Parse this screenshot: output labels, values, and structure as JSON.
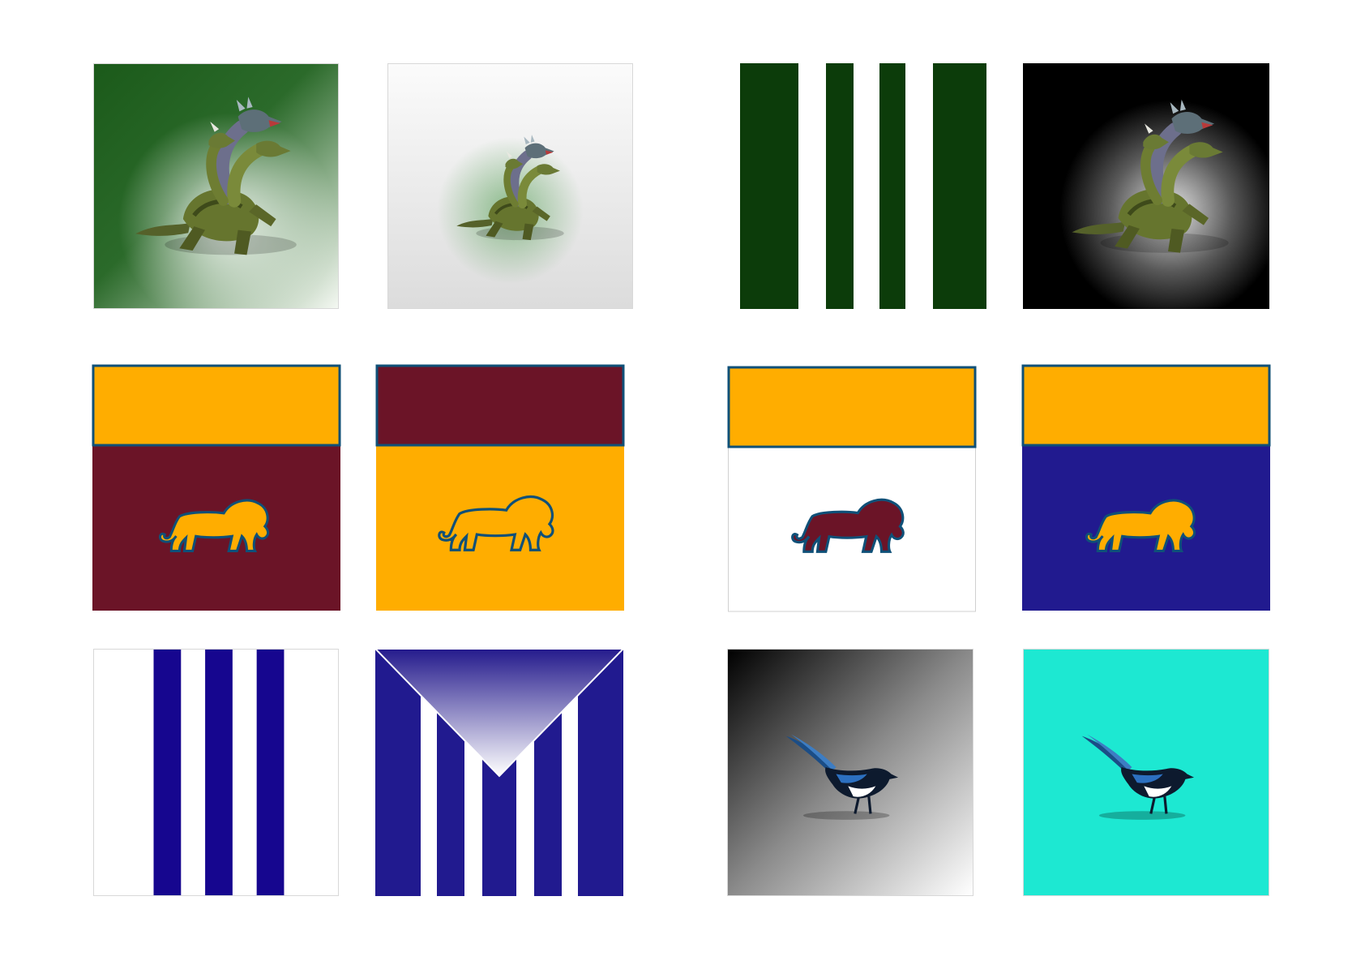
{
  "palette": {
    "hydra_green": "#1b5a1a",
    "stripe_green": "#0c3c0a",
    "maroon": "#6b1427",
    "gold": "#ffad00",
    "navy_outline": "#0f5078",
    "royal_blue": "#211a8f",
    "stripe_blue": "#16068f",
    "black": "#000000",
    "turquoise": "#1de8d2",
    "white": "#ffffff"
  },
  "rows": [
    {
      "name": "hydra-row",
      "tiles": [
        {
          "name": "hydra-green-tile",
          "background": "green-to-white-gradient",
          "emblem": "hydra-icon"
        },
        {
          "name": "hydra-white-tile",
          "background": "white-gradient",
          "emblem": "hydra-icon"
        },
        {
          "name": "green-striped-tile",
          "background": "green-with-white-stripes",
          "emblem": ""
        },
        {
          "name": "hydra-black-tile",
          "background": "black-with-white-glow",
          "emblem": "hydra-icon"
        }
      ]
    },
    {
      "name": "lion-row",
      "tiles": [
        {
          "name": "lion-maroon-tile",
          "header": "gold",
          "body": "maroon",
          "emblem": "lion-icon",
          "lion_fill": "gold"
        },
        {
          "name": "lion-gold-tile",
          "header": "maroon",
          "body": "gold",
          "emblem": "lion-icon",
          "lion_fill": "gold"
        },
        {
          "name": "lion-white-tile",
          "header": "gold",
          "body": "white",
          "emblem": "lion-icon",
          "lion_fill": "maroon"
        },
        {
          "name": "lion-blue-tile",
          "header": "gold",
          "body": "royal_blue",
          "emblem": "lion-icon",
          "lion_fill": "gold"
        }
      ]
    },
    {
      "name": "magpie-row",
      "tiles": [
        {
          "name": "blue-striped-tile",
          "background": "white-with-blue-stripes",
          "emblem": ""
        },
        {
          "name": "blue-chevron-tile",
          "background": "blue-stripes-with-v-gradient",
          "emblem": ""
        },
        {
          "name": "magpie-gray-tile",
          "background": "black-to-white-gradient",
          "emblem": "magpie-icon"
        },
        {
          "name": "magpie-turquoise-tile",
          "background": "turquoise",
          "emblem": "magpie-icon"
        }
      ]
    }
  ]
}
